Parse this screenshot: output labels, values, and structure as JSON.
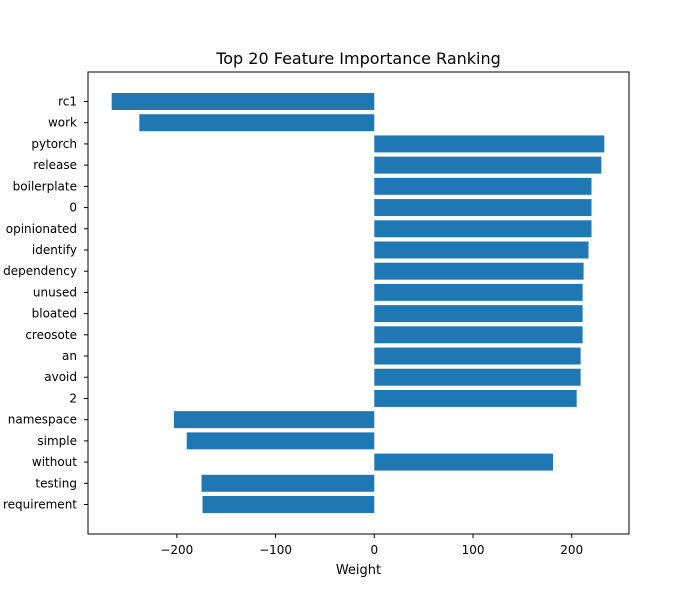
{
  "chart_data": {
    "type": "bar",
    "orientation": "horizontal",
    "title": "Top 20 Feature Importance Ranking",
    "xlabel": "Weight",
    "ylabel": "",
    "xlim": [
      -290,
      258
    ],
    "xticks": [
      -200,
      -100,
      0,
      100,
      200
    ],
    "xtick_labels": [
      "−200",
      "−100",
      "0",
      "100",
      "200"
    ],
    "bar_color": "#1f77b4",
    "grid": false,
    "legend": "none",
    "categories": [
      "rc1",
      "work",
      "pytorch",
      "release",
      "boilerplate",
      "0",
      "opinionated",
      "identify",
      "dependency",
      "unused",
      "bloated",
      "creosote",
      "an",
      "avoid",
      "2",
      "namespace",
      "simple",
      "without",
      "testing",
      "requirement"
    ],
    "values": [
      -266,
      -238,
      233,
      230,
      220,
      220,
      220,
      217,
      212,
      211,
      211,
      211,
      209,
      209,
      205,
      -203,
      -190,
      181,
      -175,
      -174
    ]
  }
}
